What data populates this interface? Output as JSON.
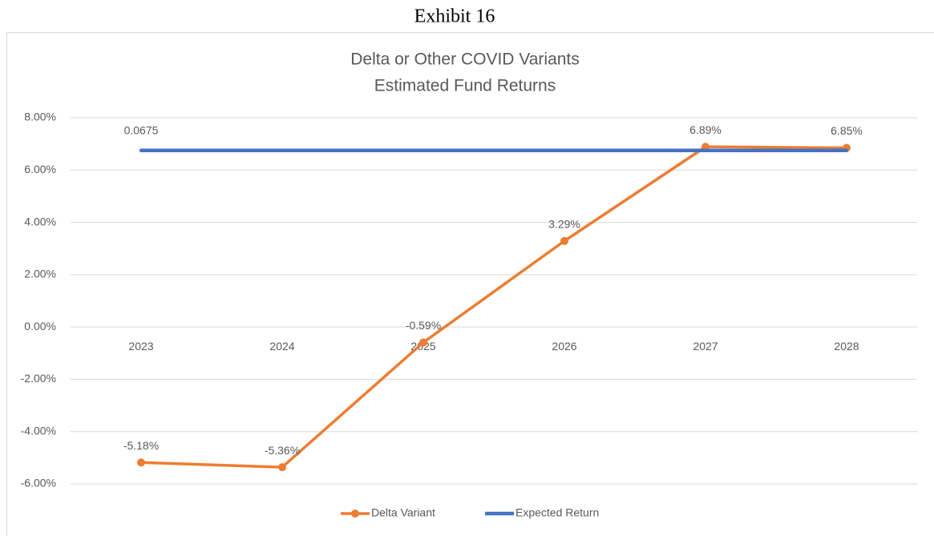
{
  "chart_data": {
    "type": "line",
    "caption": "Exhibit 16",
    "title": "Delta or Other COVID Variants",
    "subtitle": "Estimated Fund Returns",
    "categories": [
      "2023",
      "2024",
      "2025",
      "2026",
      "2027",
      "2028"
    ],
    "series": [
      {
        "name": "Delta Variant",
        "color": "#ed7d31",
        "markers": true,
        "values": [
          -5.18,
          -5.36,
          -0.59,
          3.29,
          6.89,
          6.85
        ],
        "value_labels": [
          "-5.18%",
          "-5.36%",
          "-0.59%",
          "3.29%",
          "6.89%",
          "6.85%"
        ]
      },
      {
        "name": "Expected Return",
        "color": "#4472c4",
        "markers": false,
        "values": [
          6.75,
          6.75,
          6.75,
          6.75,
          6.75,
          6.75
        ],
        "value_labels": [
          "0.0675",
          null,
          null,
          null,
          null,
          null
        ]
      }
    ],
    "ylim": [
      -6,
      8
    ],
    "yticks": [
      {
        "value": -6,
        "label": "-6.00%"
      },
      {
        "value": -4,
        "label": "-4.00%"
      },
      {
        "value": -2,
        "label": "-2.00%"
      },
      {
        "value": 0,
        "label": "0.00%"
      },
      {
        "value": 2,
        "label": "2.00%"
      },
      {
        "value": 4,
        "label": "4.00%"
      },
      {
        "value": 6,
        "label": "6.00%"
      },
      {
        "value": 8,
        "label": "8.00%"
      }
    ],
    "grid": true,
    "legend": "bottom"
  }
}
